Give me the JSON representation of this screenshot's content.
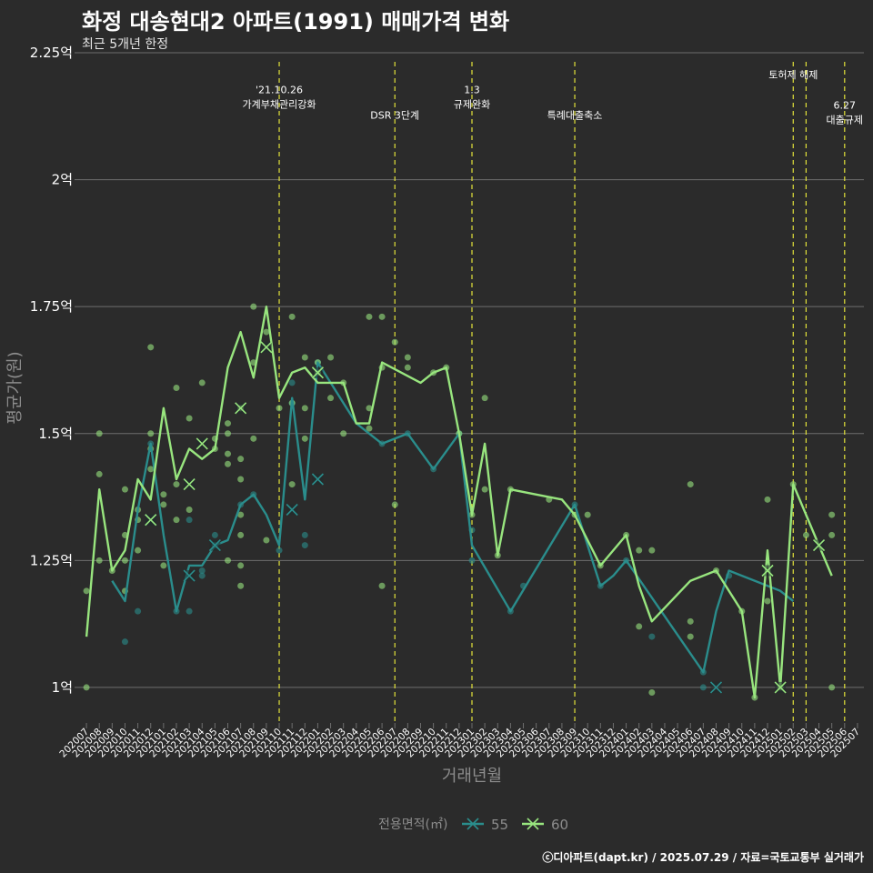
{
  "chart_data": {
    "type": "line",
    "title": "화정 대송현대2 아파트(1991) 매매가격 변화",
    "subtitle": "최근 5개년 한정",
    "xlabel": "거래년월",
    "ylabel": "평균가(원)",
    "ylim": [
      0.93,
      2.25
    ],
    "yticks": [
      1.0,
      1.25,
      1.5,
      1.75,
      2.0,
      2.25
    ],
    "ytick_labels": [
      "1억",
      "1.25억",
      "1.5억",
      "1.75억",
      "2억",
      "2.25억"
    ],
    "categories": [
      "202007",
      "202008",
      "202009",
      "202010",
      "202011",
      "202012",
      "202101",
      "202102",
      "202103",
      "202104",
      "202105",
      "202106",
      "202107",
      "202108",
      "202109",
      "202110",
      "202111",
      "202112",
      "202201",
      "202202",
      "202203",
      "202204",
      "202205",
      "202206",
      "202207",
      "202208",
      "202209",
      "202210",
      "202211",
      "202212",
      "202301",
      "202302",
      "202303",
      "202304",
      "202305",
      "202306",
      "202307",
      "202308",
      "202309",
      "202310",
      "202311",
      "202312",
      "202401",
      "202402",
      "202403",
      "202404",
      "202405",
      "202406",
      "202407",
      "202408",
      "202409",
      "202410",
      "202411",
      "202412",
      "202501",
      "202502",
      "202503",
      "202504",
      "202505",
      "202506",
      "202507"
    ],
    "legend_title": "전용면적(㎡)",
    "legend_position": "bottom",
    "grid": true,
    "series": [
      {
        "name": "55",
        "color": "#2a8d8c",
        "line": [
          [
            4,
            1.21
          ],
          [
            6,
            1.17
          ],
          [
            8,
            1.35
          ],
          [
            10,
            1.48
          ],
          [
            12,
            1.3
          ],
          [
            14,
            1.15
          ],
          [
            16,
            1.24
          ],
          [
            18,
            1.24
          ],
          [
            20,
            1.28
          ],
          [
            22,
            1.29
          ],
          [
            24,
            1.36
          ],
          [
            26,
            1.38
          ],
          [
            28,
            1.34
          ],
          [
            30,
            1.28
          ],
          [
            32,
            1.57
          ],
          [
            34,
            1.37
          ],
          [
            36,
            1.64
          ],
          [
            38,
            1.6
          ],
          [
            42,
            1.52
          ],
          [
            46,
            1.48
          ],
          [
            50,
            1.5
          ],
          [
            54,
            1.43
          ],
          [
            58,
            1.5
          ],
          [
            60,
            1.28
          ],
          [
            66,
            1.15
          ],
          [
            76,
            1.36
          ],
          [
            80,
            1.2
          ],
          [
            82,
            1.22
          ],
          [
            84,
            1.25
          ],
          [
            96,
            1.03
          ],
          [
            98,
            1.15
          ],
          [
            100,
            1.23
          ],
          [
            108,
            1.19
          ],
          [
            110,
            1.17
          ]
        ],
        "points": [
          [
            6,
            1.09
          ],
          [
            8,
            1.15
          ],
          [
            10,
            1.48
          ],
          [
            14,
            1.15
          ],
          [
            16,
            1.33
          ],
          [
            16,
            1.15
          ],
          [
            18,
            1.22
          ],
          [
            18,
            1.23
          ],
          [
            20,
            1.28
          ],
          [
            20,
            1.3
          ],
          [
            24,
            1.36
          ],
          [
            26,
            1.38
          ],
          [
            30,
            1.27
          ],
          [
            32,
            1.56
          ],
          [
            32,
            1.6
          ],
          [
            34,
            1.28
          ],
          [
            34,
            1.3
          ],
          [
            36,
            1.64
          ],
          [
            46,
            1.48
          ],
          [
            50,
            1.5
          ],
          [
            54,
            1.43
          ],
          [
            58,
            1.5
          ],
          [
            60,
            1.31
          ],
          [
            60,
            1.25
          ],
          [
            66,
            1.15
          ],
          [
            68,
            1.2
          ],
          [
            76,
            1.36
          ],
          [
            80,
            1.2
          ],
          [
            84,
            1.25
          ],
          [
            88,
            1.1
          ],
          [
            96,
            1.03
          ],
          [
            96,
            1.0
          ],
          [
            100,
            1.22
          ]
        ],
        "x_markers": [
          [
            10,
            1.33
          ],
          [
            16,
            1.22
          ],
          [
            20,
            1.28
          ],
          [
            32,
            1.35
          ],
          [
            36,
            1.41
          ],
          [
            98,
            1.0
          ]
        ]
      },
      {
        "name": "60",
        "color": "#98e57e",
        "line": [
          [
            0,
            1.1
          ],
          [
            2,
            1.39
          ],
          [
            4,
            1.23
          ],
          [
            6,
            1.27
          ],
          [
            8,
            1.41
          ],
          [
            10,
            1.37
          ],
          [
            12,
            1.55
          ],
          [
            14,
            1.41
          ],
          [
            16,
            1.47
          ],
          [
            18,
            1.45
          ],
          [
            20,
            1.47
          ],
          [
            22,
            1.63
          ],
          [
            24,
            1.7
          ],
          [
            26,
            1.61
          ],
          [
            28,
            1.75
          ],
          [
            30,
            1.57
          ],
          [
            32,
            1.62
          ],
          [
            34,
            1.63
          ],
          [
            36,
            1.6
          ],
          [
            40,
            1.6
          ],
          [
            42,
            1.52
          ],
          [
            44,
            1.52
          ],
          [
            46,
            1.64
          ],
          [
            52,
            1.6
          ],
          [
            54,
            1.62
          ],
          [
            56,
            1.63
          ],
          [
            58,
            1.5
          ],
          [
            60,
            1.34
          ],
          [
            62,
            1.48
          ],
          [
            64,
            1.26
          ],
          [
            66,
            1.39
          ],
          [
            70,
            1.38
          ],
          [
            74,
            1.37
          ],
          [
            76,
            1.34
          ],
          [
            80,
            1.24
          ],
          [
            84,
            1.3
          ],
          [
            86,
            1.2
          ],
          [
            88,
            1.13
          ],
          [
            94,
            1.21
          ],
          [
            98,
            1.23
          ],
          [
            102,
            1.15
          ],
          [
            104,
            0.98
          ],
          [
            106,
            1.27
          ],
          [
            108,
            1.0
          ],
          [
            110,
            1.4
          ],
          [
            114,
            1.28
          ],
          [
            116,
            1.22
          ]
        ],
        "points": [
          [
            0,
            1.19
          ],
          [
            0,
            1.0
          ],
          [
            2,
            1.42
          ],
          [
            2,
            1.5
          ],
          [
            2,
            1.25
          ],
          [
            4,
            1.23
          ],
          [
            6,
            1.39
          ],
          [
            6,
            1.3
          ],
          [
            6,
            1.25
          ],
          [
            6,
            1.19
          ],
          [
            8,
            1.35
          ],
          [
            8,
            1.33
          ],
          [
            8,
            1.27
          ],
          [
            10,
            1.67
          ],
          [
            10,
            1.5
          ],
          [
            10,
            1.47
          ],
          [
            10,
            1.43
          ],
          [
            12,
            1.38
          ],
          [
            12,
            1.36
          ],
          [
            12,
            1.24
          ],
          [
            14,
            1.59
          ],
          [
            14,
            1.4
          ],
          [
            14,
            1.33
          ],
          [
            16,
            1.53
          ],
          [
            16,
            1.35
          ],
          [
            18,
            1.6
          ],
          [
            20,
            1.49
          ],
          [
            20,
            1.47
          ],
          [
            22,
            1.52
          ],
          [
            22,
            1.5
          ],
          [
            22,
            1.46
          ],
          [
            22,
            1.44
          ],
          [
            22,
            1.25
          ],
          [
            24,
            1.55
          ],
          [
            24,
            1.45
          ],
          [
            24,
            1.41
          ],
          [
            24,
            1.34
          ],
          [
            24,
            1.3
          ],
          [
            24,
            1.24
          ],
          [
            24,
            1.2
          ],
          [
            26,
            1.75
          ],
          [
            26,
            1.64
          ],
          [
            26,
            1.49
          ],
          [
            28,
            1.7
          ],
          [
            28,
            1.29
          ],
          [
            30,
            1.55
          ],
          [
            32,
            1.73
          ],
          [
            32,
            1.56
          ],
          [
            32,
            1.4
          ],
          [
            34,
            1.65
          ],
          [
            34,
            1.55
          ],
          [
            34,
            1.49
          ],
          [
            36,
            1.64
          ],
          [
            36,
            1.62
          ],
          [
            38,
            1.65
          ],
          [
            38,
            1.57
          ],
          [
            40,
            1.6
          ],
          [
            40,
            1.5
          ],
          [
            44,
            1.73
          ],
          [
            44,
            1.55
          ],
          [
            44,
            1.51
          ],
          [
            46,
            1.73
          ],
          [
            46,
            1.63
          ],
          [
            46,
            1.2
          ],
          [
            48,
            1.68
          ],
          [
            48,
            1.36
          ],
          [
            50,
            1.65
          ],
          [
            50,
            1.63
          ],
          [
            54,
            1.62
          ],
          [
            56,
            1.63
          ],
          [
            58,
            1.5
          ],
          [
            60,
            1.34
          ],
          [
            62,
            1.57
          ],
          [
            62,
            1.39
          ],
          [
            64,
            1.26
          ],
          [
            66,
            1.39
          ],
          [
            72,
            1.37
          ],
          [
            76,
            1.34
          ],
          [
            78,
            1.34
          ],
          [
            80,
            1.24
          ],
          [
            84,
            1.3
          ],
          [
            86,
            1.12
          ],
          [
            86,
            1.27
          ],
          [
            88,
            0.99
          ],
          [
            88,
            1.27
          ],
          [
            94,
            1.4
          ],
          [
            94,
            1.13
          ],
          [
            94,
            1.1
          ],
          [
            98,
            1.23
          ],
          [
            102,
            1.15
          ],
          [
            104,
            0.98
          ],
          [
            106,
            1.37
          ],
          [
            106,
            1.17
          ],
          [
            108,
            1.0
          ],
          [
            110,
            1.4
          ],
          [
            112,
            1.3
          ],
          [
            116,
            1.34
          ],
          [
            116,
            1.3
          ],
          [
            116,
            1.0
          ]
        ],
        "x_markers": [
          [
            10,
            1.33
          ],
          [
            16,
            1.4
          ],
          [
            18,
            1.48
          ],
          [
            24,
            1.55
          ],
          [
            28,
            1.67
          ],
          [
            36,
            1.62
          ],
          [
            114,
            1.28
          ],
          [
            106,
            1.23
          ],
          [
            108,
            1.0
          ]
        ]
      }
    ],
    "events": [
      {
        "x_month": 15,
        "lines": [
          "'21.10.26",
          "가계부채관리강화"
        ],
        "label_y": 2.17
      },
      {
        "x_month": 24,
        "lines": [
          "DSR 3단계"
        ],
        "label_y": 2.12
      },
      {
        "x_month": 30,
        "lines": [
          "1.3",
          "규제완화"
        ],
        "label_y": 2.17
      },
      {
        "x_month": 38,
        "lines": [
          "특례대출축소"
        ],
        "label_y": 2.12
      },
      {
        "x_month": 55,
        "lines": [
          "토허제 해제"
        ],
        "label_y": 2.2
      },
      {
        "x_month": 56,
        "lines": [],
        "label_y": 2.2
      },
      {
        "x_month": 59,
        "lines": [
          "6.27",
          "대출규제"
        ],
        "label_y": 2.14
      }
    ]
  },
  "caption": "ⓒ디아파트(dapt.kr) / 2025.07.29 / 자료=국토교통부 실거래가",
  "colors": {
    "background": "#2b2b2b",
    "grid": "#6e6e6e",
    "event_line": "#e3e33a",
    "axis_text": "#ffffff",
    "axis_title": "#8c8c8c"
  }
}
